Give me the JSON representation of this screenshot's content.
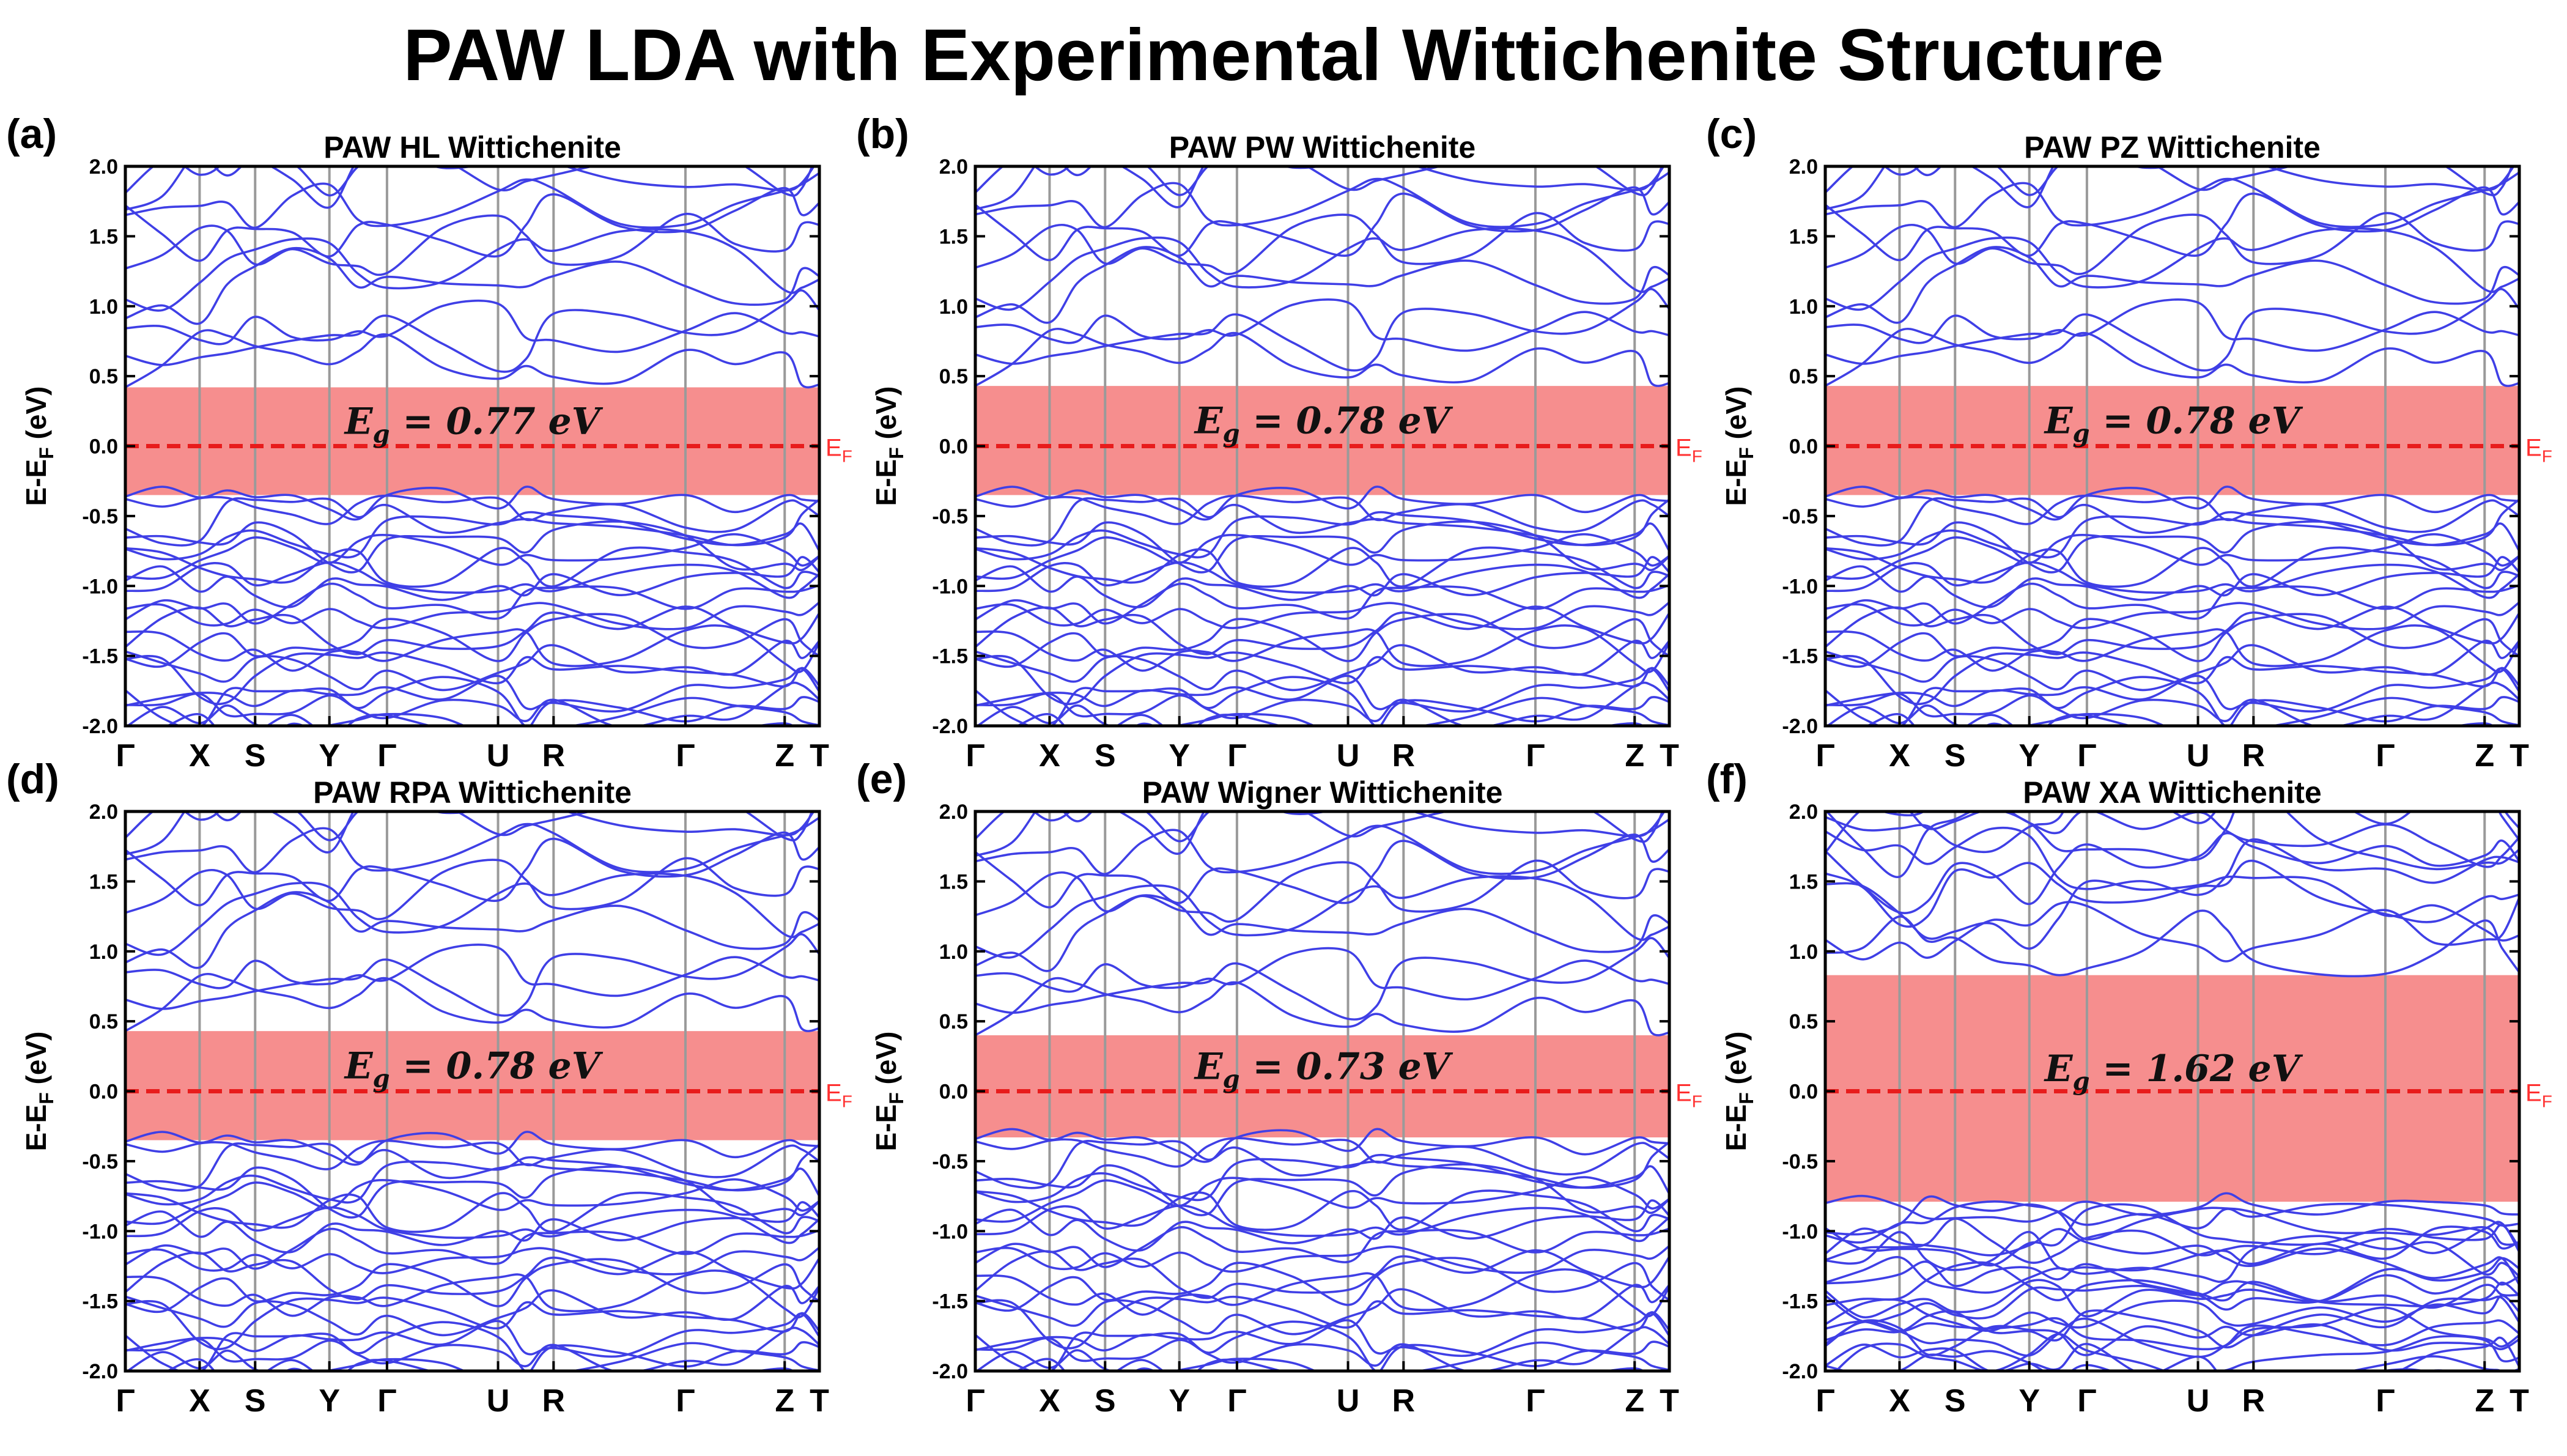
{
  "title": "PAW LDA with Experimental Wittichenite Structure",
  "colors": {
    "band": "#3f3fe6",
    "gap_fill": "#f68e8e",
    "fermi": "#e81c1c",
    "ef_label": "#ff3030",
    "hsym_line": "#9a9a9a"
  },
  "chart_data": [
    {
      "type": "line",
      "letter": "(a)",
      "title": "PAW HL Wittichenite",
      "ylabel": "E-E_F (eV)",
      "ylabel_parts": [
        "E-E",
        "F",
        " (eV)"
      ],
      "ylim": [
        -2.0,
        2.0
      ],
      "yticks": [
        "-2.0",
        "-1.5",
        "-1.0",
        "-0.5",
        "0.0",
        "0.5",
        "1.0",
        "1.5",
        "2.0"
      ],
      "kpoints": [
        "Γ",
        "X",
        "S",
        "Y",
        "Γ",
        "U",
        "R",
        "Γ",
        "Z",
        "T"
      ],
      "kpoint_positions": [
        0,
        0.107,
        0.187,
        0.294,
        0.377,
        0.537,
        0.617,
        0.807,
        0.95,
        1.0
      ],
      "fermi_level": 0.0,
      "fermi_label": "E_F",
      "fermi_label_parts": [
        "E",
        "F"
      ],
      "vbm": -0.35,
      "cbm": 0.42,
      "gap_label": "E_g = 0.77 eV",
      "gap_label_parts": [
        "E",
        "g",
        " = 0.77 eV"
      ]
    },
    {
      "type": "line",
      "letter": "(b)",
      "title": "PAW PW Wittichenite",
      "ylabel": "E-E_F (eV)",
      "ylabel_parts": [
        "E-E",
        "F",
        " (eV)"
      ],
      "ylim": [
        -2.0,
        2.0
      ],
      "yticks": [
        "-2.0",
        "-1.5",
        "-1.0",
        "-0.5",
        "0.0",
        "0.5",
        "1.0",
        "1.5",
        "2.0"
      ],
      "kpoints": [
        "Γ",
        "X",
        "S",
        "Y",
        "Γ",
        "U",
        "R",
        "Γ",
        "Z",
        "T"
      ],
      "kpoint_positions": [
        0,
        0.107,
        0.187,
        0.294,
        0.377,
        0.537,
        0.617,
        0.807,
        0.95,
        1.0
      ],
      "fermi_level": 0.0,
      "fermi_label": "E_F",
      "fermi_label_parts": [
        "E",
        "F"
      ],
      "vbm": -0.35,
      "cbm": 0.43,
      "gap_label": "E_g = 0.78 eV",
      "gap_label_parts": [
        "E",
        "g",
        " = 0.78 eV"
      ]
    },
    {
      "type": "line",
      "letter": "(c)",
      "title": "PAW PZ Wittichenite",
      "ylabel": "E-E_F (eV)",
      "ylabel_parts": [
        "E-E",
        "F",
        " (eV)"
      ],
      "ylim": [
        -2.0,
        2.0
      ],
      "yticks": [
        "-2.0",
        "-1.5",
        "-1.0",
        "-0.5",
        "0.0",
        "0.5",
        "1.0",
        "1.5",
        "2.0"
      ],
      "kpoints": [
        "Γ",
        "X",
        "S",
        "Y",
        "Γ",
        "U",
        "R",
        "Γ",
        "Z",
        "T"
      ],
      "kpoint_positions": [
        0,
        0.107,
        0.187,
        0.294,
        0.377,
        0.537,
        0.617,
        0.807,
        0.95,
        1.0
      ],
      "fermi_level": 0.0,
      "fermi_label": "E_F",
      "fermi_label_parts": [
        "E",
        "F"
      ],
      "vbm": -0.35,
      "cbm": 0.43,
      "gap_label": "E_g = 0.78 eV",
      "gap_label_parts": [
        "E",
        "g",
        " = 0.78 eV"
      ]
    },
    {
      "type": "line",
      "letter": "(d)",
      "title": "PAW RPA Wittichenite",
      "ylabel": "E-E_F (eV)",
      "ylabel_parts": [
        "E-E",
        "F",
        " (eV)"
      ],
      "ylim": [
        -2.0,
        2.0
      ],
      "yticks": [
        "-2.0",
        "-1.5",
        "-1.0",
        "-0.5",
        "0.0",
        "0.5",
        "1.0",
        "1.5",
        "2.0"
      ],
      "kpoints": [
        "Γ",
        "X",
        "S",
        "Y",
        "Γ",
        "U",
        "R",
        "Γ",
        "Z",
        "T"
      ],
      "kpoint_positions": [
        0,
        0.107,
        0.187,
        0.294,
        0.377,
        0.537,
        0.617,
        0.807,
        0.95,
        1.0
      ],
      "fermi_level": 0.0,
      "fermi_label": "E_F",
      "fermi_label_parts": [
        "E",
        "F"
      ],
      "vbm": -0.35,
      "cbm": 0.43,
      "gap_label": "E_g = 0.78 eV",
      "gap_label_parts": [
        "E",
        "g",
        " = 0.78 eV"
      ]
    },
    {
      "type": "line",
      "letter": "(e)",
      "title": "PAW Wigner Wittichenite",
      "ylabel": "E-E_F (eV)",
      "ylabel_parts": [
        "E-E",
        "F",
        " (eV)"
      ],
      "ylim": [
        -2.0,
        2.0
      ],
      "yticks": [
        "-2.0",
        "-1.5",
        "-1.0",
        "-0.5",
        "0.0",
        "0.5",
        "1.0",
        "1.5",
        "2.0"
      ],
      "kpoints": [
        "Γ",
        "X",
        "S",
        "Y",
        "Γ",
        "U",
        "R",
        "Γ",
        "Z",
        "T"
      ],
      "kpoint_positions": [
        0,
        0.107,
        0.187,
        0.294,
        0.377,
        0.537,
        0.617,
        0.807,
        0.95,
        1.0
      ],
      "fermi_level": 0.0,
      "fermi_label": "E_F",
      "fermi_label_parts": [
        "E",
        "F"
      ],
      "vbm": -0.33,
      "cbm": 0.4,
      "gap_label": "E_g = 0.73 eV",
      "gap_label_parts": [
        "E",
        "g",
        " = 0.73 eV"
      ]
    },
    {
      "type": "line",
      "letter": "(f)",
      "title": "PAW XA Wittichenite",
      "ylabel": "E-E_F (eV)",
      "ylabel_parts": [
        "E-E",
        "F",
        " (eV)"
      ],
      "ylim": [
        -2.0,
        2.0
      ],
      "yticks": [
        "-2.0",
        "-1.5",
        "-1.0",
        "-0.5",
        "0.0",
        "0.5",
        "1.0",
        "1.5",
        "2.0"
      ],
      "kpoints": [
        "Γ",
        "X",
        "S",
        "Y",
        "Γ",
        "U",
        "R",
        "Γ",
        "Z",
        "T"
      ],
      "kpoint_positions": [
        0,
        0.107,
        0.187,
        0.294,
        0.377,
        0.537,
        0.617,
        0.807,
        0.95,
        1.0
      ],
      "fermi_level": 0.0,
      "fermi_label": "E_F",
      "fermi_label_parts": [
        "E",
        "F"
      ],
      "vbm": -0.79,
      "cbm": 0.83,
      "gap_label": "E_g = 1.62 eV",
      "gap_label_parts": [
        "E",
        "g",
        " = 1.62 eV"
      ]
    }
  ]
}
